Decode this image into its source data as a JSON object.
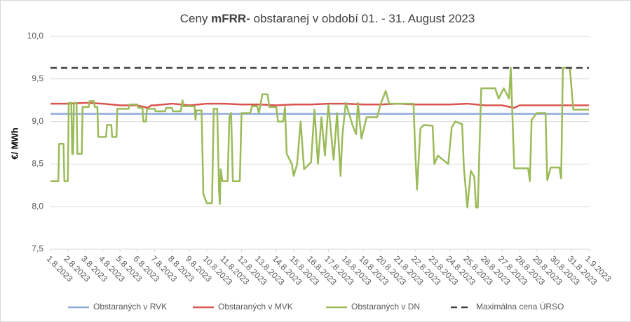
{
  "chart_data": {
    "type": "line",
    "title": {
      "prefix": "Ceny",
      "bold": "mFRR-",
      "rest": "obstaranej v období 01. - 31. August 2023"
    },
    "y_label": "€/ MWh",
    "xlim": [
      1,
      32
    ],
    "ylim": [
      7.5,
      10
    ],
    "yticks": [
      {
        "value": 7.5,
        "label": "7,5"
      },
      {
        "value": 8,
        "label": "8,0"
      },
      {
        "value": 8.5,
        "label": "8,5"
      },
      {
        "value": 9,
        "label": "9,0"
      },
      {
        "value": 9.5,
        "label": "9,5"
      },
      {
        "value": 10,
        "label": "10,0"
      }
    ],
    "xticks": [
      {
        "value": 1,
        "label": "1.8.2023"
      },
      {
        "value": 2,
        "label": "2.8.2023"
      },
      {
        "value": 3,
        "label": "3.8.2023"
      },
      {
        "value": 4,
        "label": "4.8.2023"
      },
      {
        "value": 5,
        "label": "5.8.2023"
      },
      {
        "value": 6,
        "label": "6.8.2023"
      },
      {
        "value": 7,
        "label": "7.8.2023"
      },
      {
        "value": 8,
        "label": "8.8.2023"
      },
      {
        "value": 9,
        "label": "9.8.2023"
      },
      {
        "value": 10,
        "label": "10.8.2023"
      },
      {
        "value": 11,
        "label": "11.8.2023"
      },
      {
        "value": 12,
        "label": "12.8.2023"
      },
      {
        "value": 13,
        "label": "13.8.2023"
      },
      {
        "value": 14,
        "label": "14.8.2023"
      },
      {
        "value": 15,
        "label": "15.8.2023"
      },
      {
        "value": 16,
        "label": "16.8.2023"
      },
      {
        "value": 17,
        "label": "17.8.2023"
      },
      {
        "value": 18,
        "label": "18.8.2023"
      },
      {
        "value": 19,
        "label": "19.8.2023"
      },
      {
        "value": 20,
        "label": "20.8.2023"
      },
      {
        "value": 21,
        "label": "21.8.2023"
      },
      {
        "value": 22,
        "label": "22.8.2023"
      },
      {
        "value": 23,
        "label": "23.8.2023"
      },
      {
        "value": 24,
        "label": "24.8.2023"
      },
      {
        "value": 25,
        "label": "25.8.2023"
      },
      {
        "value": 26,
        "label": "26.8.2023"
      },
      {
        "value": 27,
        "label": "27.8.2023"
      },
      {
        "value": 28,
        "label": "28.8.2023"
      },
      {
        "value": 29,
        "label": "29.8.2023"
      },
      {
        "value": 30,
        "label": "30.8.2023"
      },
      {
        "value": 31,
        "label": "31.8.2023"
      },
      {
        "value": 32,
        "label": "1.9.2023"
      }
    ],
    "grid": true,
    "series": [
      {
        "name": "Obstaraných v RVK",
        "color": "#8faadc",
        "dashed": false,
        "x": [
          1,
          32
        ],
        "values": [
          9.09,
          9.09
        ]
      },
      {
        "name": "Obstaraných v MVK",
        "color": "#d9534f",
        "dashed": false,
        "x": [
          1,
          2,
          3,
          4,
          5,
          6,
          6.6,
          6.8,
          7,
          8,
          9,
          10,
          11,
          12,
          13,
          14,
          15,
          16,
          17,
          18,
          19,
          20,
          21,
          22,
          23,
          24,
          25,
          26,
          27,
          27.7,
          28,
          29,
          30,
          31,
          32
        ],
        "values": [
          9.21,
          9.21,
          9.22,
          9.21,
          9.19,
          9.19,
          9.16,
          9.19,
          9.19,
          9.21,
          9.19,
          9.21,
          9.21,
          9.2,
          9.2,
          9.19,
          9.2,
          9.2,
          9.21,
          9.21,
          9.2,
          9.2,
          9.21,
          9.2,
          9.2,
          9.2,
          9.21,
          9.19,
          9.19,
          9.16,
          9.19,
          9.19,
          9.19,
          9.19,
          9.19
        ]
      },
      {
        "name": "Obstaraných v DN",
        "color": "#9bbb59",
        "dashed": false,
        "x": [
          1,
          1.45,
          1.5,
          1.75,
          1.8,
          2,
          2.05,
          2.2,
          2.25,
          2.3,
          2.35,
          2.5,
          2.55,
          2.8,
          2.85,
          3.2,
          3.25,
          3.5,
          3.55,
          3.7,
          3.75,
          4.2,
          4.25,
          4.5,
          4.55,
          4.8,
          4.85,
          5.5,
          5.55,
          6,
          6.05,
          6.3,
          6.35,
          6.5,
          6.55,
          7,
          7.05,
          7.6,
          7.65,
          8,
          8.05,
          8.5,
          8.6,
          8.65,
          9.3,
          9.35,
          9.4,
          9.7,
          9.8,
          10,
          10.3,
          10.4,
          10.6,
          10.7,
          10.75,
          10.8,
          10.9,
          11.2,
          11.3,
          11.4,
          11.5,
          11.9,
          12,
          12.5,
          12.6,
          12.9,
          13,
          13.2,
          13.5,
          13.6,
          14,
          14.1,
          14.4,
          14.5,
          14.6,
          14.9,
          15,
          15.2,
          15.4,
          15.6,
          16,
          16.2,
          16.4,
          16.6,
          16.8,
          17,
          17.3,
          17.5,
          17.7,
          17.8,
          18,
          18.4,
          18.6,
          18.7,
          18.9,
          19.2,
          19.8,
          20,
          20.3,
          20.5,
          21.9,
          22,
          22.1,
          22.3,
          22.5,
          23,
          23.1,
          23.3,
          23.6,
          23.9,
          24.1,
          24.3,
          24.7,
          24.8,
          25,
          25.2,
          25.4,
          25.5,
          25.6,
          25.8,
          26.6,
          26.8,
          27.1,
          27.4,
          27.5,
          27.7,
          28.5,
          28.6,
          28.7,
          29,
          29.5,
          29.6,
          29.8,
          30.3,
          30.4,
          30.5,
          30.9,
          31.1,
          32
        ],
        "values": [
          8.3,
          8.3,
          8.74,
          8.74,
          8.3,
          8.3,
          9.22,
          9.22,
          8.62,
          8.62,
          9.22,
          9.22,
          8.62,
          8.62,
          9.17,
          9.17,
          9.24,
          9.24,
          9.17,
          9.17,
          8.82,
          8.82,
          8.96,
          8.96,
          8.82,
          8.82,
          9.15,
          9.15,
          9.2,
          9.2,
          9.16,
          9.16,
          9,
          9,
          9.15,
          9.15,
          9.12,
          9.12,
          9.16,
          9.16,
          9.12,
          9.12,
          9.25,
          9.18,
          9.18,
          9.02,
          9.13,
          9.13,
          8.15,
          8.04,
          8.04,
          9.15,
          9.15,
          8.2,
          8.03,
          8.44,
          8.3,
          8.3,
          9.05,
          9.1,
          8.3,
          8.3,
          9.1,
          9.1,
          9.18,
          9.18,
          9.1,
          9.32,
          9.32,
          9.17,
          9.17,
          9,
          9,
          9.17,
          8.62,
          8.5,
          8.36,
          8.5,
          9,
          8.44,
          8.52,
          9.14,
          8.5,
          9.05,
          8.6,
          9.2,
          8.55,
          9.1,
          8.36,
          8.82,
          9.22,
          8.95,
          8.85,
          9.22,
          8.8,
          9.05,
          9.05,
          9.2,
          9.36,
          9.21,
          9.21,
          8.65,
          8.2,
          8.92,
          8.96,
          8.95,
          8.5,
          8.6,
          8.55,
          8.5,
          8.93,
          9,
          8.97,
          8.46,
          7.99,
          8.42,
          8.35,
          7.99,
          7.99,
          9.39,
          9.39,
          9.27,
          9.39,
          9.27,
          9.63,
          8.45,
          8.45,
          8.3,
          9.02,
          9.1,
          9.1,
          8.31,
          8.46,
          8.46,
          8.33,
          9.63,
          9.63,
          9.14,
          9.14
        ]
      },
      {
        "name": "Maximálna cena ÚRSO",
        "color": "#404040",
        "dashed": true,
        "x": [
          1,
          32
        ],
        "values": [
          9.63,
          9.63
        ]
      }
    ]
  }
}
